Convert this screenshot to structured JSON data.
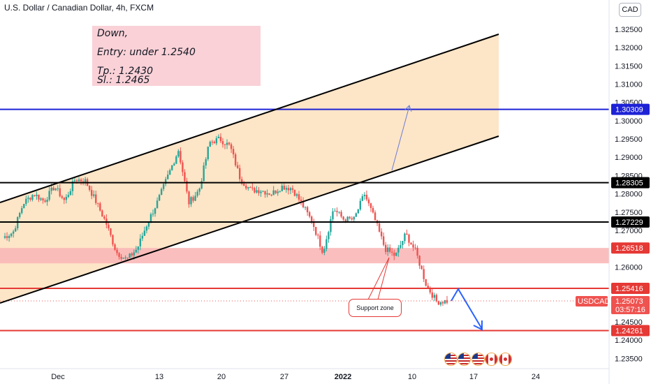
{
  "title": "U.S. Dollar / Canadian Dollar, 4h, FXCM",
  "currency_badge": "CAD",
  "note": {
    "line1": "Down,",
    "line2": "Entry: under 1.2540",
    "line3": "Tp.: 1.2430",
    "line4": "Sl.: 1.2465"
  },
  "support_label": "Support zone",
  "colors": {
    "up": "#26a69a",
    "down": "#ef5350",
    "channel_fill": "#fde0bd",
    "zone_fill": "#f9b7b7",
    "blue_line": "#1e22d6",
    "red_line": "#e53935",
    "black_line": "#000000"
  },
  "chart_data": {
    "type": "candlestick",
    "title": "U.S. Dollar / Canadian Dollar, 4h, FXCM",
    "symbol": "USDCAD",
    "ylim": [
      1.2322,
      1.333
    ],
    "y_ticks": [
      "1.23500",
      "1.24000",
      "1.24500",
      "1.25000",
      "1.25500",
      "1.26000",
      "1.26500",
      "1.27000",
      "1.27500",
      "1.28000",
      "1.28500",
      "1.29000",
      "1.29500",
      "1.30000",
      "1.30500",
      "1.31000",
      "1.31500",
      "1.32000",
      "1.32500"
    ],
    "x_ticks": [
      "Dec",
      "13",
      "20",
      "27",
      "2022",
      "10",
      "17",
      "24"
    ],
    "price_tags": [
      {
        "label": "1.30309",
        "value": 1.30309,
        "color": "#1e22d6"
      },
      {
        "label": "1.28305",
        "value": 1.28305,
        "color": "#000000"
      },
      {
        "label": "1.27229",
        "value": 1.27229,
        "color": "#000000"
      },
      {
        "label": "1.26518",
        "value": 1.26518,
        "color": "#e53935"
      },
      {
        "label": "1.25416",
        "value": 1.25416,
        "color": "#e53935"
      },
      {
        "label": "1.24261",
        "value": 1.24261,
        "color": "#e53935"
      }
    ],
    "last_price": {
      "symbol": "USDCAD",
      "value": "1.25073",
      "countdown": "03:57:16"
    },
    "horizontal_lines": [
      {
        "value": 1.30309,
        "color": "#1e22d6"
      },
      {
        "value": 1.28305,
        "color": "#000000"
      },
      {
        "value": 1.27229,
        "color": "#000000"
      },
      {
        "value": 1.25416,
        "color": "#e53935"
      },
      {
        "value": 1.24261,
        "color": "#e53935"
      }
    ],
    "zone": {
      "top": 1.2652,
      "bottom": 1.261
    },
    "candles_anchor": [
      [
        1.2685,
        1.268
      ],
      [
        1.2705,
        1.2695
      ],
      [
        1.276,
        1.2775
      ],
      [
        1.282,
        1.28
      ],
      [
        1.28,
        1.278
      ],
      [
        1.283,
        1.282
      ],
      [
        1.279,
        1.278
      ],
      [
        1.283,
        1.284
      ],
      [
        1.282,
        1.2835
      ],
      [
        1.281,
        1.278
      ],
      [
        1.274,
        1.272
      ],
      [
        1.265,
        1.264
      ],
      [
        1.262,
        1.262
      ],
      [
        1.264,
        1.265
      ],
      [
        1.27,
        1.272
      ],
      [
        1.276,
        1.278
      ],
      [
        1.283,
        1.285
      ],
      [
        1.29,
        1.292
      ],
      [
        1.278,
        1.2775
      ],
      [
        1.28,
        1.281
      ],
      [
        1.292,
        1.294
      ],
      [
        1.2955,
        1.295
      ],
      [
        1.294,
        1.293
      ],
      [
        1.285,
        1.284
      ],
      [
        1.282,
        1.281
      ],
      [
        1.2815,
        1.281
      ],
      [
        1.2805,
        1.28
      ],
      [
        1.281,
        1.282
      ],
      [
        1.282,
        1.2815
      ],
      [
        1.278,
        1.277
      ],
      [
        1.274,
        1.272
      ],
      [
        1.266,
        1.264
      ],
      [
        1.275,
        1.276
      ],
      [
        1.274,
        1.273
      ],
      [
        1.272,
        1.273
      ],
      [
        1.279,
        1.28
      ],
      [
        1.274,
        1.273
      ],
      [
        1.266,
        1.265
      ],
      [
        1.264,
        1.263
      ],
      [
        1.268,
        1.269
      ],
      [
        1.265,
        1.264
      ],
      [
        1.256,
        1.255
      ],
      [
        1.251,
        1.2505
      ],
      [
        1.251,
        1.2507
      ]
    ],
    "annotations": [
      "Down,",
      "Entry: under 1.2540",
      "Tp.: 1.2430",
      "Sl.: 1.2465",
      "Support zone"
    ]
  }
}
